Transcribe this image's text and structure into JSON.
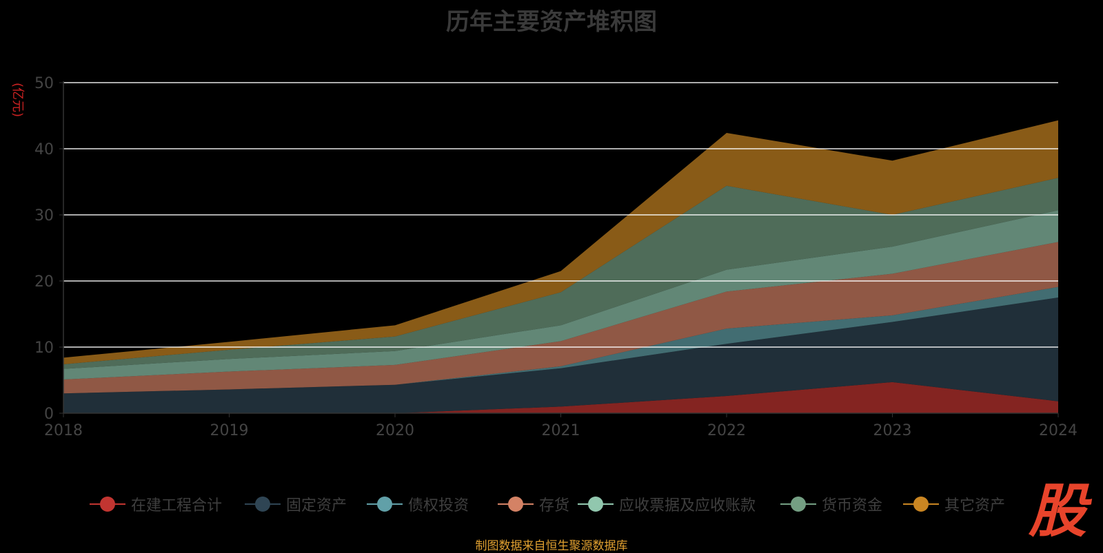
{
  "chart_data": {
    "type": "area",
    "title": "历年主要资产堆积图",
    "ylabel": "亿元",
    "xlabel": "",
    "ylim": [
      0,
      50
    ],
    "yticks": [
      0,
      10,
      20,
      30,
      40,
      50
    ],
    "x": [
      "2018",
      "2019",
      "2020",
      "2021",
      "2022",
      "2023",
      "2024"
    ],
    "stacked": true,
    "series": [
      {
        "name": "在建工程合计",
        "color": "#c23531",
        "values": [
          0.0,
          0.0,
          0.0,
          1.0,
          2.6,
          4.7,
          1.8
        ]
      },
      {
        "name": "固定资产",
        "color": "#2f4554",
        "values": [
          3.0,
          3.6,
          4.3,
          5.8,
          7.9,
          9.1,
          15.7
        ]
      },
      {
        "name": "债权投资",
        "color": "#61a0a8",
        "values": [
          0.0,
          0.0,
          0.0,
          0.3,
          2.3,
          1.0,
          1.6
        ]
      },
      {
        "name": "存货",
        "color": "#d48265",
        "values": [
          2.1,
          2.7,
          3.0,
          3.8,
          5.6,
          6.3,
          6.8
        ]
      },
      {
        "name": "应收票据及应收账款",
        "color": "#91c7ae",
        "values": [
          1.6,
          1.9,
          2.1,
          2.4,
          3.3,
          4.1,
          4.8
        ]
      },
      {
        "name": "货币资金",
        "color": "#749f83",
        "values": [
          0.7,
          1.4,
          2.2,
          5.0,
          12.7,
          4.8,
          4.9
        ]
      },
      {
        "name": "其它资产",
        "color": "#ca8622",
        "values": [
          1.0,
          1.2,
          1.7,
          3.2,
          8.0,
          8.2,
          8.7
        ]
      }
    ]
  },
  "footer": {
    "source_text": "制图数据来自恒生聚源数据库"
  },
  "logo": {
    "text": "股"
  },
  "colors": {
    "background": "#000000",
    "gridline": "#ffffff",
    "axis_text": "#444444",
    "footer": "#e0a030",
    "logo": "#e8442b"
  }
}
